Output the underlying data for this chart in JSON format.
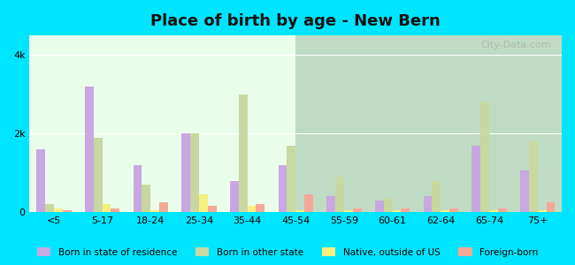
{
  "title": "Place of birth by age - New Bern",
  "categories": [
    "<5",
    "5-17",
    "18-24",
    "25-34",
    "35-44",
    "45-54",
    "55-59",
    "60-61",
    "62-64",
    "65-74",
    "75+"
  ],
  "series": {
    "Born in state of residence": [
      1600,
      3200,
      1200,
      2000,
      800,
      1200,
      400,
      300,
      400,
      1700,
      1050
    ],
    "Born in other state": [
      200,
      1900,
      700,
      2000,
      3000,
      1700,
      900,
      350,
      800,
      2800,
      1800
    ],
    "Native, outside of US": [
      100,
      200,
      50,
      450,
      150,
      50,
      50,
      50,
      50,
      50,
      50
    ],
    "Foreign-born": [
      50,
      100,
      250,
      150,
      200,
      450,
      100,
      100,
      100,
      100,
      250
    ]
  },
  "colors": {
    "Born in state of residence": "#c8a8e0",
    "Born in other state": "#c8d8a0",
    "Native, outside of US": "#f5f080",
    "Foreign-born": "#f5a898"
  },
  "ylim": [
    0,
    4500
  ],
  "yticks": [
    0,
    2000,
    4000
  ],
  "ytick_labels": [
    "0",
    "2k",
    "4k"
  ],
  "background_color": "#e8fce8",
  "outer_background": "#00e5ff",
  "bar_width": 0.18,
  "watermark": "City-Data.com"
}
